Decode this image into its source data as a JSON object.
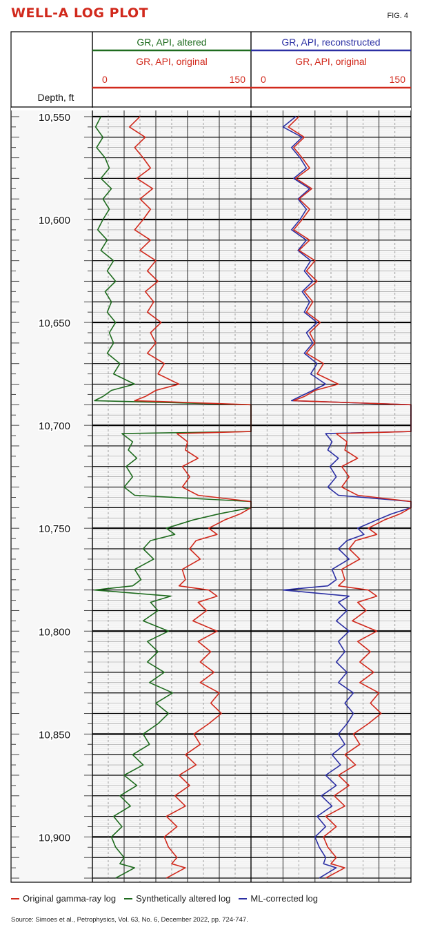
{
  "figure": {
    "title": "WELL-A LOG PLOT",
    "fig_number": "FIG. 4",
    "source": "Source: Simoes et al., Petrophysics, Vol. 63, No. 6, December 2022, pp. 724-747."
  },
  "colors": {
    "original": "#d1291c",
    "altered": "#1e6b1e",
    "reconstructed": "#2b2fa3",
    "title": "#d1291c"
  },
  "legend": [
    {
      "label": "Original gamma-ray log",
      "color": "#d1291c"
    },
    {
      "label": "Synthetically altered log",
      "color": "#1e6b1e"
    },
    {
      "label": "ML-corrected log",
      "color": "#2b2fa3"
    }
  ],
  "chart_data": {
    "type": "line",
    "depth_label": "Depth, ft",
    "depth_ticks": [
      "10,550",
      "10,600",
      "10,650",
      "10,700",
      "10,750",
      "10,800",
      "10,850",
      "10,900"
    ],
    "depth_tick_values": [
      10550,
      10600,
      10650,
      10700,
      10750,
      10800,
      10850,
      10900
    ],
    "depth_range": [
      10547,
      10922
    ],
    "x_range": [
      0,
      150
    ],
    "tracks": [
      {
        "header_top": "GR, API, altered",
        "header_top_color": "#1e6b1e",
        "header_bottom": "GR, API, original",
        "scale_min": "0",
        "scale_max": "150",
        "series": [
          {
            "name": "GR, API, altered",
            "color": "#1e6b1e",
            "curve": "altered"
          },
          {
            "name": "GR, API, original",
            "color": "#d1291c",
            "curve": "original"
          }
        ]
      },
      {
        "header_top": "GR, API, reconstructed",
        "header_top_color": "#2b2fa3",
        "header_bottom": "GR, API, original",
        "scale_min": "0",
        "scale_max": "150",
        "series": [
          {
            "name": "GR, API, reconstructed",
            "color": "#2b2fa3",
            "curve": "reconstructed"
          },
          {
            "name": "GR, API, original",
            "color": "#d1291c",
            "curve": "original"
          }
        ]
      }
    ],
    "curves": {
      "original": {
        "depth": [
          10550,
          10555,
          10560,
          10565,
          10570,
          10575,
          10580,
          10585,
          10590,
          10595,
          10600,
          10605,
          10610,
          10615,
          10620,
          10625,
          10630,
          10635,
          10640,
          10645,
          10650,
          10655,
          10660,
          10665,
          10670,
          10675,
          10680,
          10683,
          10686,
          10688,
          10690,
          10693,
          10696,
          10700,
          10703,
          10704,
          10708,
          10712,
          10716,
          10720,
          10725,
          10730,
          10734,
          10737,
          10740,
          10743,
          10746,
          10750,
          10753,
          10756,
          10760,
          10765,
          10770,
          10775,
          10778,
          10780,
          10783,
          10786,
          10790,
          10795,
          10800,
          10805,
          10810,
          10815,
          10820,
          10825,
          10830,
          10835,
          10840,
          10845,
          10850,
          10855,
          10860,
          10865,
          10870,
          10875,
          10880,
          10885,
          10890,
          10895,
          10900,
          10905,
          10910,
          10913,
          10915,
          10920
        ],
        "value": [
          45,
          35,
          50,
          40,
          48,
          55,
          42,
          57,
          45,
          55,
          48,
          40,
          55,
          45,
          60,
          52,
          62,
          50,
          58,
          52,
          65,
          55,
          60,
          52,
          68,
          62,
          82,
          60,
          50,
          40,
          150,
          150,
          150,
          150,
          150,
          80,
          90,
          88,
          100,
          85,
          92,
          85,
          100,
          150,
          150,
          140,
          125,
          110,
          118,
          98,
          92,
          102,
          85,
          88,
          82,
          110,
          118,
          100,
          108,
          95,
          118,
          100,
          112,
          102,
          115,
          102,
          120,
          112,
          122,
          110,
          96,
          102,
          88,
          98,
          82,
          92,
          78,
          88,
          70,
          80,
          68,
          72,
          80,
          75,
          88,
          70
        ],
        "notes": "digitized approximation of the red original gamma-ray curve (API)"
      },
      "altered": {
        "depth": [
          10550,
          10555,
          10560,
          10565,
          10570,
          10575,
          10580,
          10585,
          10590,
          10595,
          10600,
          10605,
          10610,
          10615,
          10620,
          10625,
          10630,
          10635,
          10640,
          10645,
          10650,
          10655,
          10660,
          10665,
          10670,
          10675,
          10680,
          10683,
          10686,
          10688,
          10690,
          10693,
          10696,
          10700,
          10703,
          10704,
          10708,
          10712,
          10716,
          10720,
          10725,
          10730,
          10734,
          10737,
          10740,
          10743,
          10746,
          10750,
          10753,
          10756,
          10760,
          10765,
          10770,
          10775,
          10778,
          10780,
          10783,
          10786,
          10790,
          10795,
          10800,
          10805,
          10810,
          10815,
          10820,
          10825,
          10830,
          10835,
          10840,
          10845,
          10850,
          10855,
          10860,
          10865,
          10870,
          10875,
          10880,
          10885,
          10890,
          10895,
          10900,
          10905,
          10910,
          10913,
          10915,
          10920
        ],
        "value": [
          8,
          3,
          10,
          4,
          12,
          16,
          8,
          18,
          10,
          16,
          10,
          5,
          14,
          8,
          20,
          14,
          22,
          12,
          18,
          14,
          22,
          16,
          20,
          14,
          26,
          20,
          40,
          18,
          10,
          2,
          150,
          150,
          150,
          150,
          150,
          28,
          38,
          34,
          42,
          32,
          38,
          30,
          40,
          150,
          150,
          120,
          95,
          70,
          78,
          55,
          48,
          58,
          40,
          46,
          38,
          2,
          74,
          55,
          62,
          48,
          72,
          52,
          62,
          52,
          68,
          54,
          76,
          60,
          72,
          62,
          48,
          54,
          38,
          48,
          30,
          42,
          26,
          36,
          20,
          28,
          18,
          22,
          30,
          26,
          40,
          22
        ]
      },
      "reconstructed": {
        "depth": [
          10550,
          10555,
          10560,
          10565,
          10570,
          10575,
          10580,
          10585,
          10590,
          10595,
          10600,
          10605,
          10610,
          10615,
          10620,
          10625,
          10630,
          10635,
          10640,
          10645,
          10650,
          10655,
          10660,
          10665,
          10670,
          10675,
          10680,
          10683,
          10686,
          10688,
          10690,
          10693,
          10696,
          10700,
          10703,
          10704,
          10708,
          10712,
          10716,
          10720,
          10725,
          10730,
          10734,
          10737,
          10740,
          10743,
          10746,
          10750,
          10753,
          10756,
          10760,
          10765,
          10770,
          10775,
          10778,
          10780,
          10783,
          10786,
          10790,
          10795,
          10800,
          10805,
          10810,
          10815,
          10820,
          10825,
          10830,
          10835,
          10840,
          10845,
          10850,
          10855,
          10860,
          10865,
          10870,
          10875,
          10880,
          10885,
          10890,
          10895,
          10900,
          10905,
          10910,
          10913,
          10915,
          10920
        ],
        "value": [
          42,
          30,
          48,
          38,
          46,
          52,
          40,
          55,
          44,
          52,
          46,
          38,
          52,
          44,
          56,
          50,
          58,
          48,
          55,
          50,
          62,
          52,
          58,
          50,
          62,
          56,
          70,
          58,
          46,
          38,
          150,
          150,
          150,
          150,
          150,
          70,
          76,
          72,
          82,
          74,
          80,
          72,
          82,
          150,
          150,
          132,
          118,
          100,
          106,
          90,
          82,
          92,
          76,
          80,
          72,
          30,
          92,
          82,
          90,
          80,
          92,
          82,
          88,
          80,
          90,
          82,
          96,
          88,
          96,
          90,
          82,
          88,
          76,
          84,
          70,
          80,
          66,
          76,
          62,
          70,
          60,
          64,
          70,
          68,
          80,
          64
        ]
      }
    },
    "grid": true
  }
}
